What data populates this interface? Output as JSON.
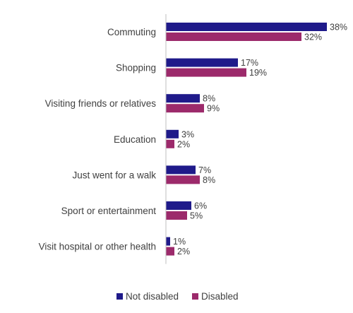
{
  "chart_data": {
    "type": "bar",
    "orientation": "horizontal",
    "categories": [
      "Commuting",
      "Shopping",
      "Visiting friends or relatives",
      "Education",
      "Just went for a walk",
      "Sport or entertainment",
      "Visit hospital or other health"
    ],
    "series": [
      {
        "name": "Not disabled",
        "color": "#1f1a8a",
        "values": [
          38,
          17,
          8,
          3,
          7,
          6,
          1
        ]
      },
      {
        "name": "Disabled",
        "color": "#9c2a6b",
        "values": [
          32,
          19,
          9,
          2,
          8,
          5,
          2
        ]
      }
    ],
    "value_suffix": "%",
    "xlim": [
      0,
      38
    ],
    "grid": false,
    "legend_position": "bottom"
  }
}
